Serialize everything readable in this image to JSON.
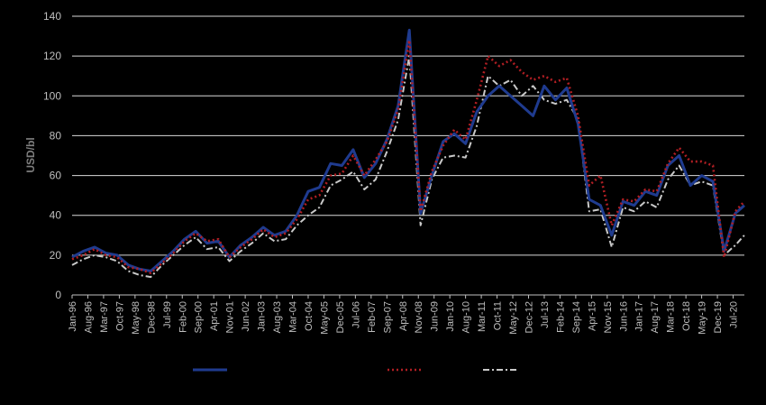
{
  "chart_data": {
    "type": "line",
    "title": "",
    "ylabel": "USD/bl",
    "xlabel": "",
    "ylim": [
      0,
      140
    ],
    "yticks": [
      0,
      20,
      40,
      60,
      80,
      100,
      120,
      140
    ],
    "grid": true,
    "legend_placement": "bottom",
    "x_tick_labels": [
      "Jan-96",
      "Aug-96",
      "Mar-97",
      "Oct-97",
      "May-98",
      "Dec-98",
      "Jul-99",
      "Feb-00",
      "Sep-00",
      "Apr-01",
      "Nov-01",
      "Jun-02",
      "Jan-03",
      "Aug-03",
      "Mar-04",
      "Oct-04",
      "May-05",
      "Dec-05",
      "Jul-06",
      "Feb-07",
      "Sep-07",
      "Apr-08",
      "Nov-08",
      "Jun-09",
      "Jan-10",
      "Aug-10",
      "Mar-11",
      "Oct-11",
      "May-12",
      "Dec-12",
      "Jul-13",
      "Feb-14",
      "Sep-14",
      "Apr-15",
      "Nov-15",
      "Jun-16",
      "Jan-17",
      "Aug-17",
      "Mar-18",
      "Oct-18",
      "May-19",
      "Dec-19",
      "Jul-20"
    ],
    "x": [
      "Jan-96",
      "Jun-96",
      "Nov-96",
      "Apr-97",
      "Sep-97",
      "Feb-98",
      "Jul-98",
      "Dec-98",
      "May-99",
      "Oct-99",
      "Mar-00",
      "Aug-00",
      "Jan-01",
      "Jun-01",
      "Nov-01",
      "Apr-02",
      "Sep-02",
      "Feb-03",
      "Jul-03",
      "Dec-03",
      "May-04",
      "Oct-04",
      "Mar-05",
      "Aug-05",
      "Jan-06",
      "Jun-06",
      "Nov-06",
      "Apr-07",
      "Sep-07",
      "Feb-08",
      "Jul-08",
      "Dec-08",
      "May-09",
      "Oct-09",
      "Mar-10",
      "Aug-10",
      "Jan-11",
      "Jun-11",
      "Nov-11",
      "Apr-12",
      "Sep-12",
      "Feb-13",
      "Jul-13",
      "Dec-13",
      "May-14",
      "Oct-14",
      "Mar-15",
      "Aug-15",
      "Jan-16",
      "Jun-16",
      "Nov-16",
      "Apr-17",
      "Sep-17",
      "Feb-18",
      "Jul-18",
      "Dec-18",
      "May-19",
      "Oct-19",
      "Mar-20",
      "Aug-20",
      "Dec-20"
    ],
    "series": [
      {
        "color": "#1f3b8f",
        "dash": "solid",
        "values": [
          19,
          22,
          24,
          21,
          20,
          15,
          13,
          12,
          17,
          22,
          28,
          32,
          26,
          27,
          19,
          25,
          29,
          34,
          30,
          32,
          40,
          52,
          54,
          66,
          65,
          73,
          59,
          66,
          78,
          95,
          133,
          41,
          60,
          77,
          81,
          76,
          92,
          100,
          105,
          100,
          95,
          90,
          105,
          98,
          104,
          86,
          48,
          45,
          30,
          47,
          45,
          52,
          50,
          65,
          70,
          55,
          60,
          57,
          22,
          41,
          45
        ]
      },
      {
        "color": "#b01e23",
        "dash": "dot",
        "values": [
          18,
          20,
          23,
          20,
          19,
          14,
          13,
          11,
          16,
          21,
          27,
          31,
          27,
          28,
          19,
          24,
          28,
          33,
          29,
          31,
          38,
          48,
          50,
          60,
          61,
          70,
          60,
          68,
          77,
          93,
          128,
          42,
          62,
          75,
          83,
          78,
          98,
          120,
          115,
          118,
          112,
          108,
          110,
          107,
          109,
          90,
          55,
          60,
          35,
          48,
          47,
          53,
          52,
          66,
          74,
          67,
          67,
          65,
          19,
          42,
          47
        ]
      },
      {
        "color": "#c9c9c9",
        "dash": "dashdot",
        "values": [
          15,
          18,
          20,
          19,
          17,
          12,
          10,
          9,
          15,
          20,
          25,
          29,
          23,
          24,
          17,
          22,
          26,
          31,
          27,
          28,
          35,
          40,
          44,
          55,
          58,
          62,
          53,
          58,
          72,
          88,
          120,
          35,
          58,
          69,
          70,
          69,
          85,
          110,
          105,
          108,
          100,
          105,
          98,
          96,
          98,
          88,
          42,
          43,
          24,
          44,
          42,
          47,
          44,
          58,
          65,
          55,
          57,
          55,
          20,
          25,
          30
        ]
      }
    ]
  }
}
